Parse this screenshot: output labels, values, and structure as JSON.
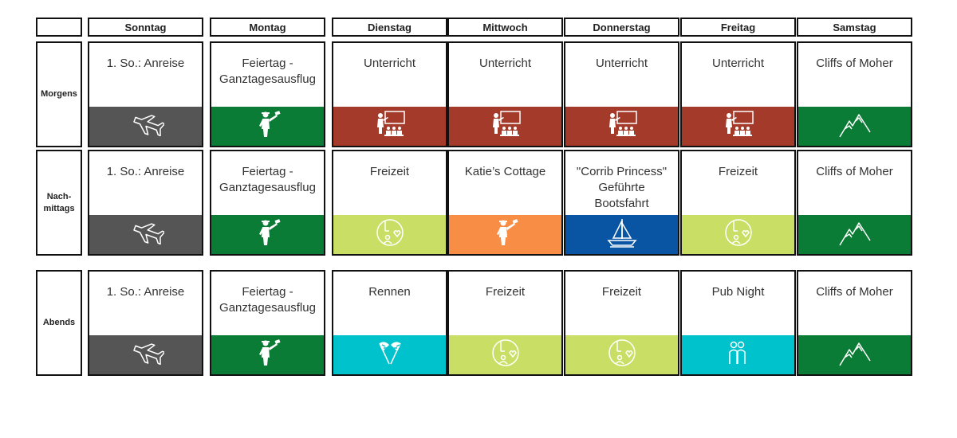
{
  "corner": "",
  "days": [
    "Sonntag",
    "Montag",
    "Dienstag",
    "Mittwoch",
    "Donnerstag",
    "Freitag",
    "Samstag"
  ],
  "rows": [
    {
      "label": "Morgens",
      "cells": [
        {
          "text": "1. So.: Anreise",
          "color": "#555555",
          "icon": "airplane-icon"
        },
        {
          "text": "Feiertag -\nGanztagesausflug",
          "color": "#0b7c35",
          "icon": "tour-guide-icon"
        },
        {
          "text": "Unterricht",
          "color": "#a33a2a",
          "icon": "classroom-icon"
        },
        {
          "text": "Unterricht",
          "color": "#a33a2a",
          "icon": "classroom-icon"
        },
        {
          "text": "Unterricht",
          "color": "#a33a2a",
          "icon": "classroom-icon"
        },
        {
          "text": "Unterricht",
          "color": "#a33a2a",
          "icon": "classroom-icon"
        },
        {
          "text": "Cliffs of Moher",
          "color": "#0b7c35",
          "icon": "mountain-icon"
        }
      ]
    },
    {
      "label": "Nach-\nmittags",
      "cells": [
        {
          "text": "1. So.: Anreise",
          "color": "#555555",
          "icon": "airplane-icon"
        },
        {
          "text": "Feiertag -\nGanztagesausflug",
          "color": "#0b7c35",
          "icon": "tour-guide-icon"
        },
        {
          "text": "Freizeit",
          "color": "#c9de65",
          "icon": "free-time-icon"
        },
        {
          "text": "Katie’s Cottage",
          "color": "#f88e45",
          "icon": "tour-guide-icon"
        },
        {
          "text": "\"Corrib Princess\"\nGeführte\nBootsfahrt",
          "color": "#0a55a3",
          "icon": "sailboat-icon"
        },
        {
          "text": "Freizeit",
          "color": "#c9de65",
          "icon": "free-time-icon"
        },
        {
          "text": "Cliffs of Moher",
          "color": "#0b7c35",
          "icon": "mountain-icon"
        }
      ]
    },
    {
      "label": "Abends",
      "cells": [
        {
          "text": "1. So.: Anreise",
          "color": "#555555",
          "icon": "airplane-icon"
        },
        {
          "text": "Feiertag -\nGanztagesausflug",
          "color": "#0b7c35",
          "icon": "tour-guide-icon"
        },
        {
          "text": "Rennen",
          "color": "#00c2cc",
          "icon": "racing-flags-icon"
        },
        {
          "text": "Freizeit",
          "color": "#c9de65",
          "icon": "free-time-icon"
        },
        {
          "text": "Freizeit",
          "color": "#c9de65",
          "icon": "free-time-icon"
        },
        {
          "text": "Pub Night",
          "color": "#00c2cc",
          "icon": "people-icon"
        },
        {
          "text": "Cliffs of Moher",
          "color": "#0b7c35",
          "icon": "mountain-icon"
        }
      ]
    }
  ]
}
